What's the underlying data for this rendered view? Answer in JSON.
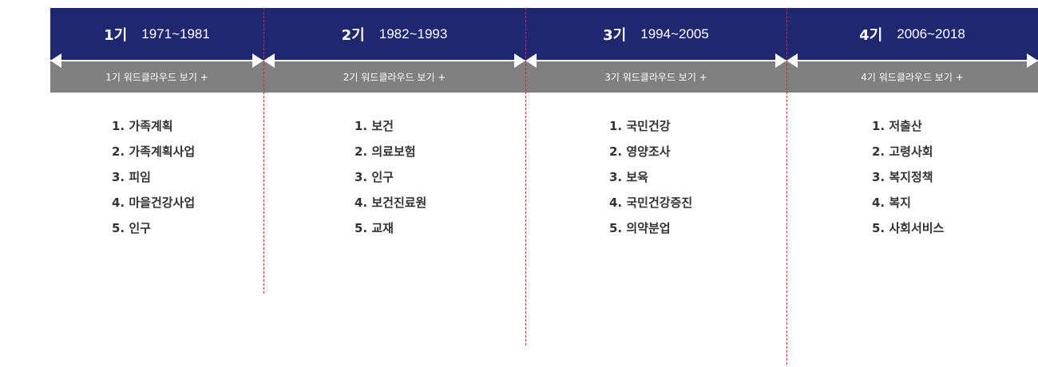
{
  "periods": [
    {
      "gen": "1기",
      "years": "1971~1981",
      "link": "1기 워드클라우드 보기 +",
      "items": [
        "1. 가족계획",
        "2. 가족계획사업",
        "3. 피임",
        "4. 마을건강사업",
        "5. 인구"
      ]
    },
    {
      "gen": "2기",
      "years": "1982~1993",
      "link": "2기 워드클라우드 보기 +",
      "items": [
        "1. 보건",
        "2. 의료보험",
        "3. 인구",
        "4. 보건진료원",
        "5. 교재"
      ]
    },
    {
      "gen": "3기",
      "years": "1994~2005",
      "link": "3기 워드클라우드 보기 +",
      "items": [
        "1. 국민건강",
        "2. 영양조사",
        "3. 보육",
        "4. 국민건강증진",
        "5. 의약분업"
      ]
    },
    {
      "gen": "4기",
      "years": "2006~2018",
      "link": "4기 워드클라우드 보기 +",
      "items": [
        "1. 저출산",
        "2. 고령사회",
        "3. 복지정책",
        "4. 복지",
        "5. 사회서비스"
      ]
    }
  ],
  "colors": {
    "header": "#1f286e",
    "bar": "#808080",
    "divider": "#e8202a"
  }
}
